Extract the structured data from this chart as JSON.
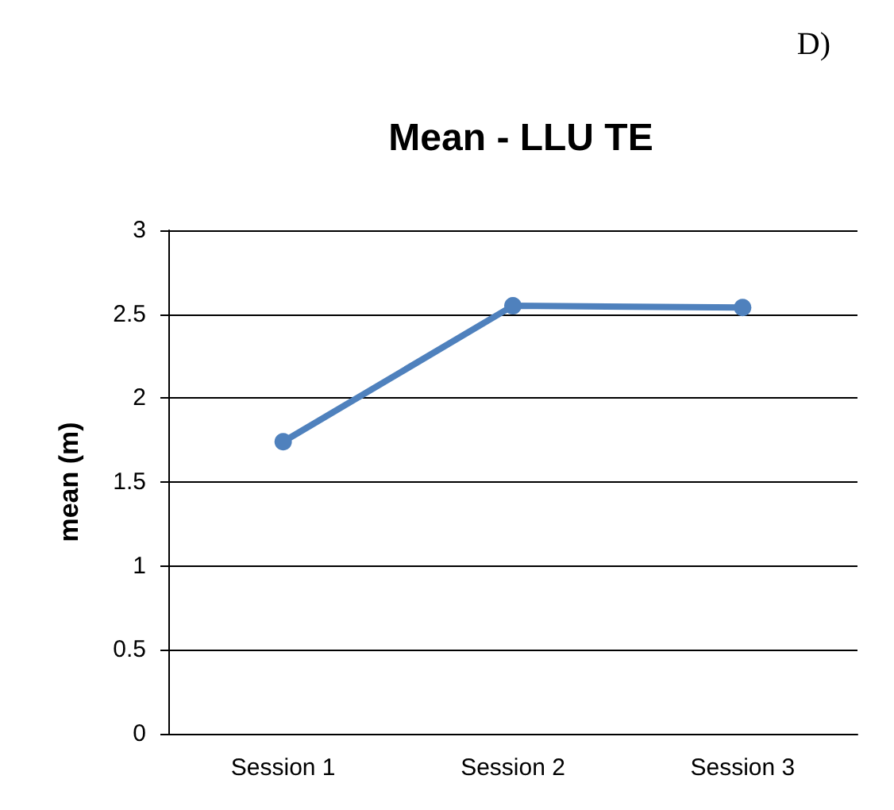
{
  "chart_data": {
    "type": "line",
    "title": "Mean - LLU TE",
    "ylabel": "mean (m)",
    "annotations": [
      "D)"
    ],
    "categories": [
      "Session 1",
      "Session 2",
      "Session 3"
    ],
    "series": [
      {
        "color": "#4f81bd",
        "values": [
          1.74,
          2.55,
          2.54
        ]
      }
    ],
    "ylim": [
      0,
      3
    ],
    "yticks": [
      0,
      0.5,
      1,
      1.5,
      2,
      2.5,
      3
    ],
    "grid": "y",
    "marker": "circle",
    "line_style": "solid"
  }
}
